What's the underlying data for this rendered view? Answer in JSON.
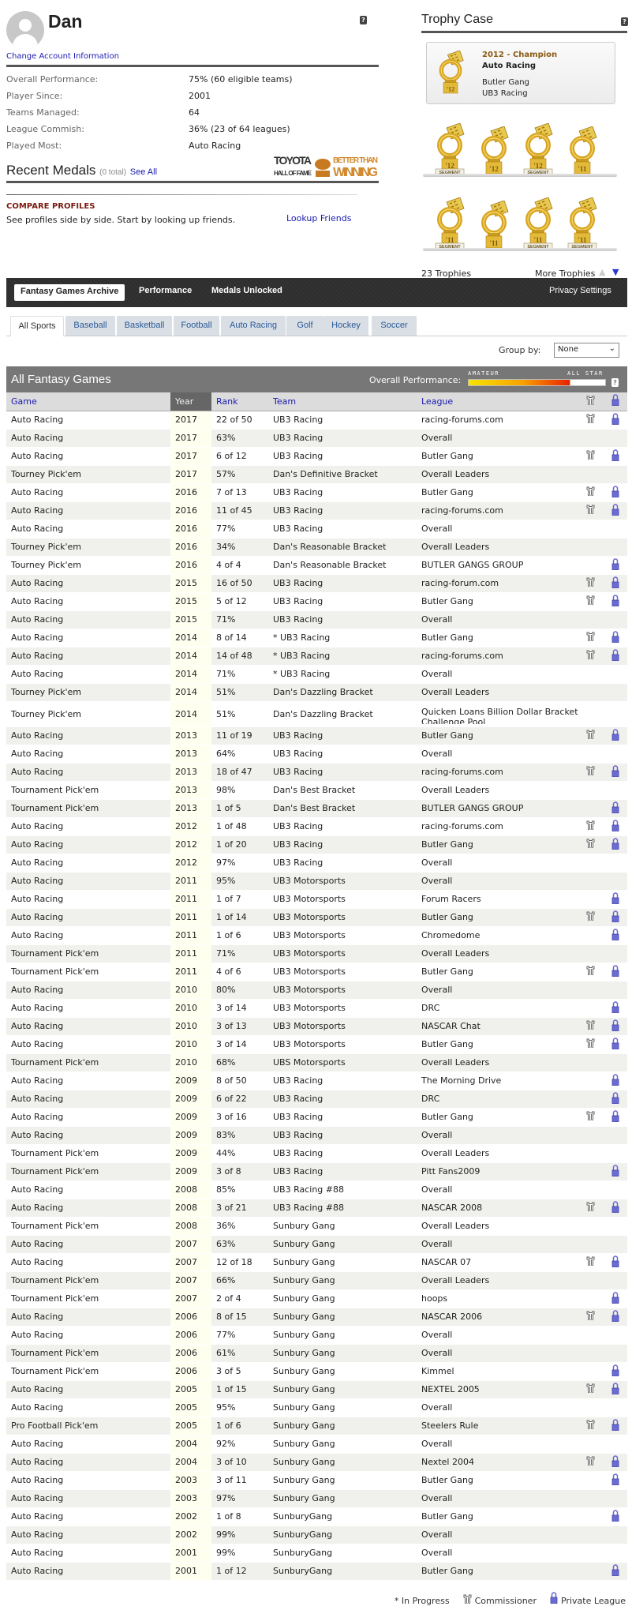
{
  "profile": {
    "name": "Dan",
    "change_account_label": "Change Account Information",
    "help_label": "?",
    "stats": [
      {
        "label": "Overall Performance:",
        "value": "75% (60 eligible teams)"
      },
      {
        "label": "Player Since:",
        "value": "2001"
      },
      {
        "label": "Teams Managed:",
        "value": "64"
      },
      {
        "label": "League Commish:",
        "value": "36% (23 of 64 leagues)"
      },
      {
        "label": "Played Most:",
        "value": "Auto Racing"
      }
    ],
    "recent_medals": {
      "title": "Recent Medals",
      "count": "(0 total)",
      "see_all": "See All"
    },
    "sponsor": {
      "line1": "TOYOTA",
      "line2": "HALL OF FAME",
      "line3": "BETTER THAN",
      "line4": "WINNING"
    }
  },
  "compare": {
    "heading": "COMPARE PROFILES",
    "text": "See profiles side by side. Start by looking up friends.",
    "link": "Lookup Friends"
  },
  "trophy_case": {
    "title": "Trophy Case",
    "featured": {
      "title": "2012 - Champion",
      "game": "Auto Racing",
      "league": "Butler Gang",
      "team": "UB3 Racing",
      "year": "'12"
    },
    "trophies": [
      {
        "year": "'12",
        "segment": true
      },
      {
        "year": "'12",
        "segment": false
      },
      {
        "year": "'12",
        "segment": true
      },
      {
        "year": "'11",
        "segment": false
      },
      {
        "year": "'11",
        "segment": true
      },
      {
        "year": "'11",
        "segment": false
      },
      {
        "year": "'11",
        "segment": true
      },
      {
        "year": "'11",
        "segment": true
      }
    ],
    "segment_label": "SEGMENT",
    "count_label": "23 Trophies",
    "more_label": "More Trophies"
  },
  "nav": {
    "tabs": [
      "Fantasy Games Archive",
      "Performance",
      "Medals Unlocked"
    ],
    "active": "Fantasy Games Archive",
    "privacy": "Privacy Settings"
  },
  "sport_tabs": [
    "All Sports",
    "Baseball",
    "Basketball",
    "Football",
    "Auto Racing",
    "Golf",
    "Hockey",
    "Soccer"
  ],
  "group_by": {
    "label": "Group by:",
    "value": "None"
  },
  "games": {
    "title": "All Fantasy Games",
    "overall_label": "Overall Performance:",
    "scale_low": "AMATEUR",
    "scale_high": "ALL STAR",
    "overall_percent": 75,
    "columns": [
      "Game",
      "Year",
      "Rank",
      "Team",
      "League"
    ],
    "rows": [
      [
        "Auto Racing",
        "2017",
        "22 of 50",
        "UB3 Racing",
        "racing-forums.com",
        1,
        1
      ],
      [
        "Auto Racing",
        "2017",
        "63%",
        "UB3 Racing",
        "Overall",
        0,
        0
      ],
      [
        "Auto Racing",
        "2017",
        "6 of 12",
        "UB3 Racing",
        "Butler Gang",
        1,
        1
      ],
      [
        "Tourney Pick'em",
        "2017",
        "57%",
        "Dan's Definitive Bracket",
        "Overall Leaders",
        0,
        0
      ],
      [
        "Auto Racing",
        "2016",
        "7 of 13",
        "UB3 Racing",
        "Butler Gang",
        1,
        1
      ],
      [
        "Auto Racing",
        "2016",
        "11 of 45",
        "UB3 Racing",
        "racing-forums.com",
        1,
        1
      ],
      [
        "Auto Racing",
        "2016",
        "77%",
        "UB3 Racing",
        "Overall",
        0,
        0
      ],
      [
        "Tourney Pick'em",
        "2016",
        "34%",
        "Dan's Reasonable Bracket",
        "Overall Leaders",
        0,
        0
      ],
      [
        "Tourney Pick'em",
        "2016",
        "4 of 4",
        "Dan's Reasonable Bracket",
        "BUTLER GANGS GROUP",
        0,
        1
      ],
      [
        "Auto Racing",
        "2015",
        "16 of 50",
        "UB3 Racing",
        "racing-forum.com",
        1,
        1
      ],
      [
        "Auto Racing",
        "2015",
        "5 of 12",
        "UB3 Racing",
        "Butler Gang",
        1,
        1
      ],
      [
        "Auto Racing",
        "2015",
        "71%",
        "UB3 Racing",
        "Overall",
        0,
        0
      ],
      [
        "Auto Racing",
        "2014",
        "8 of 14",
        "* UB3 Racing",
        "Butler Gang",
        1,
        1
      ],
      [
        "Auto Racing",
        "2014",
        "14 of 48",
        "* UB3 Racing",
        "racing-forums.com",
        1,
        1
      ],
      [
        "Auto Racing",
        "2014",
        "71%",
        "* UB3 Racing",
        "Overall",
        0,
        0
      ],
      [
        "Tourney Pick'em",
        "2014",
        "51%",
        "Dan's Dazzling Bracket",
        "Overall Leaders",
        0,
        0
      ],
      [
        "Tourney Pick'em",
        "2014",
        "51%",
        "Dan's Dazzling Bracket",
        "Quicken Loans Billion Dollar Bracket Challenge Pool",
        0,
        0
      ],
      [
        "Auto Racing",
        "2013",
        "11 of 19",
        "UB3 Racing",
        "Butler Gang",
        1,
        1
      ],
      [
        "Auto Racing",
        "2013",
        "64%",
        "UB3 Racing",
        "Overall",
        0,
        0
      ],
      [
        "Auto Racing",
        "2013",
        "18 of 47",
        "UB3 Racing",
        "racing-forums.com",
        1,
        1
      ],
      [
        "Tournament Pick'em",
        "2013",
        "98%",
        "Dan's Best Bracket",
        "Overall Leaders",
        0,
        0
      ],
      [
        "Tournament Pick'em",
        "2013",
        "1 of 5",
        "Dan's Best Bracket",
        "BUTLER GANGS GROUP",
        0,
        1
      ],
      [
        "Auto Racing",
        "2012",
        "1 of 48",
        "UB3 Racing",
        "racing-forums.com",
        1,
        1
      ],
      [
        "Auto Racing",
        "2012",
        "1 of 20",
        "UB3 Racing",
        "Butler Gang",
        1,
        1
      ],
      [
        "Auto Racing",
        "2012",
        "97%",
        "UB3 Racing",
        "Overall",
        0,
        0
      ],
      [
        "Auto Racing",
        "2011",
        "95%",
        "UB3 Motorsports",
        "Overall",
        0,
        0
      ],
      [
        "Auto Racing",
        "2011",
        "1 of 7",
        "UB3 Motorsports",
        "Forum Racers",
        0,
        1
      ],
      [
        "Auto Racing",
        "2011",
        "1 of 14",
        "UB3 Motorsports",
        "Butler Gang",
        1,
        1
      ],
      [
        "Auto Racing",
        "2011",
        "1 of 6",
        "UB3 Motorsports",
        "Chromedome",
        0,
        1
      ],
      [
        "Tournament Pick'em",
        "2011",
        "71%",
        "UB3 Motorsports",
        "Overall Leaders",
        0,
        0
      ],
      [
        "Tournament Pick'em",
        "2011",
        "4 of 6",
        "UB3 Motorsports",
        "Butler Gang",
        1,
        1
      ],
      [
        "Auto Racing",
        "2010",
        "80%",
        "UB3 Motorsports",
        "Overall",
        0,
        0
      ],
      [
        "Auto Racing",
        "2010",
        "3 of 14",
        "UB3 Motorsports",
        "DRC",
        0,
        1
      ],
      [
        "Auto Racing",
        "2010",
        "3 of 13",
        "UB3 Motorsports",
        "NASCAR Chat",
        1,
        1
      ],
      [
        "Auto Racing",
        "2010",
        "3 of 14",
        "UB3 Motorsports",
        "Butler Gang",
        1,
        1
      ],
      [
        "Tournament Pick'em",
        "2010",
        "68%",
        "UBS Motorsports",
        "Overall Leaders",
        0,
        0
      ],
      [
        "Auto Racing",
        "2009",
        "8 of 50",
        "UB3 Racing",
        "The Morning Drive",
        0,
        1
      ],
      [
        "Auto Racing",
        "2009",
        "6 of 22",
        "UB3 Racing",
        "DRC",
        0,
        1
      ],
      [
        "Auto Racing",
        "2009",
        "3 of 16",
        "UB3 Racing",
        "Butler Gang",
        1,
        1
      ],
      [
        "Auto Racing",
        "2009",
        "83%",
        "UB3 Racing",
        "Overall",
        0,
        0
      ],
      [
        "Tournament Pick'em",
        "2009",
        "44%",
        "UB3 Racing",
        "Overall Leaders",
        0,
        0
      ],
      [
        "Tournament Pick'em",
        "2009",
        "3 of 8",
        "UB3 Racing",
        "Pitt Fans2009",
        0,
        1
      ],
      [
        "Auto Racing",
        "2008",
        "85%",
        "UB3 Racing #88",
        "Overall",
        0,
        0
      ],
      [
        "Auto Racing",
        "2008",
        "3 of 21",
        "UB3 Racing #88",
        "NASCAR 2008",
        1,
        1
      ],
      [
        "Tournament Pick'em",
        "2008",
        "36%",
        "Sunbury Gang",
        "Overall Leaders",
        0,
        0
      ],
      [
        "Auto Racing",
        "2007",
        "63%",
        "Sunbury Gang",
        "Overall",
        0,
        0
      ],
      [
        "Auto Racing",
        "2007",
        "12 of 18",
        "Sunbury Gang",
        "NASCAR 07",
        1,
        1
      ],
      [
        "Tournament Pick'em",
        "2007",
        "66%",
        "Sunbury Gang",
        "Overall Leaders",
        0,
        0
      ],
      [
        "Tournament Pick'em",
        "2007",
        "2 of 4",
        "Sunbury Gang",
        "hoops",
        0,
        1
      ],
      [
        "Auto Racing",
        "2006",
        "8 of 15",
        "Sunbury Gang",
        "NASCAR 2006",
        1,
        1
      ],
      [
        "Auto Racing",
        "2006",
        "77%",
        "Sunbury Gang",
        "Overall",
        0,
        0
      ],
      [
        "Tournament Pick'em",
        "2006",
        "61%",
        "Sunbury Gang",
        "Overall",
        0,
        0
      ],
      [
        "Tournament Pick'em",
        "2006",
        "3 of 5",
        "Sunbury Gang",
        "Kimmel",
        0,
        1
      ],
      [
        "Auto Racing",
        "2005",
        "1 of 15",
        "Sunbury Gang",
        "NEXTEL 2005",
        1,
        1
      ],
      [
        "Auto Racing",
        "2005",
        "95%",
        "Sunbury Gang",
        "Overall",
        0,
        0
      ],
      [
        "Pro Football Pick'em",
        "2005",
        "1 of 6",
        "Sunbury Gang",
        "Steelers Rule",
        1,
        1
      ],
      [
        "Auto Racing",
        "2004",
        "92%",
        "Sunbury Gang",
        "Overall",
        0,
        0
      ],
      [
        "Auto Racing",
        "2004",
        "3 of 10",
        "Sunbury Gang",
        "Nextel 2004",
        1,
        1
      ],
      [
        "Auto Racing",
        "2003",
        "3 of 11",
        "Sunbury Gang",
        "Butler Gang",
        0,
        1
      ],
      [
        "Auto Racing",
        "2003",
        "97%",
        "Sunbury Gang",
        "Overall",
        0,
        0
      ],
      [
        "Auto Racing",
        "2002",
        "1 of 8",
        "SunburyGang",
        "Butler Gang",
        0,
        1
      ],
      [
        "Auto Racing",
        "2002",
        "99%",
        "SunburyGang",
        "Overall",
        0,
        0
      ],
      [
        "Auto Racing",
        "2001",
        "99%",
        "SunburyGang",
        "Overall",
        0,
        0
      ],
      [
        "Auto Racing",
        "2001",
        "1 of 12",
        "SunburyGang",
        "Butler Gang",
        0,
        1
      ]
    ]
  },
  "legend": {
    "in_progress": "* In Progress",
    "commissioner": "Commissioner",
    "private": "Private League"
  },
  "colors": {
    "link": "#1a1ab0",
    "nav_bg": "#333333",
    "title_bar": "#777777",
    "lock": "#6666cc",
    "gold": "#d9a520"
  }
}
